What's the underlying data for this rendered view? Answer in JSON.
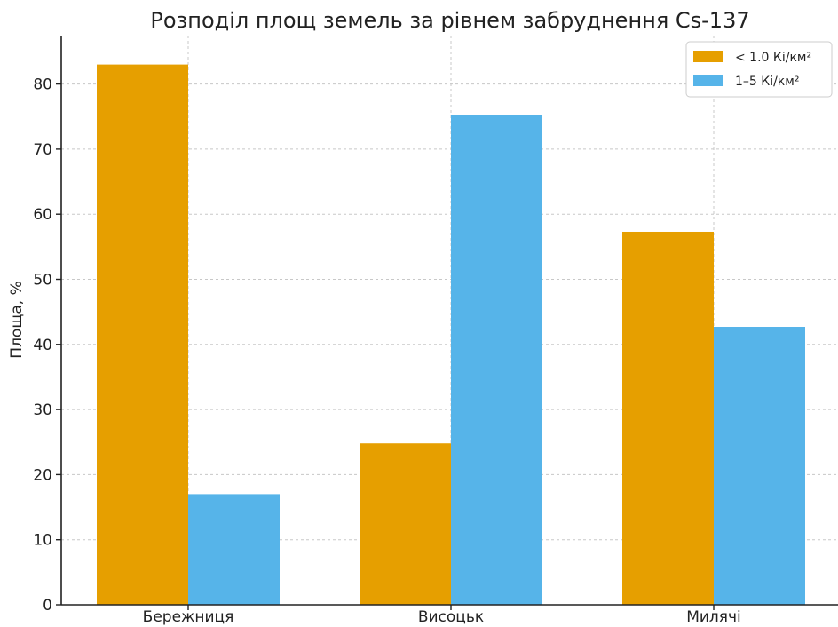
{
  "chart_data": {
    "type": "bar",
    "title": "Розподіл площ земель за рівнем забруднення Cs-137",
    "xlabel": "",
    "ylabel": "Площа, %",
    "categories": [
      "Бережниця",
      "Висоцьк",
      "Милячі"
    ],
    "series": [
      {
        "name": "< 1.0 Кі/км²",
        "values": [
          83,
          24.8,
          57.3
        ],
        "color": "#E69F00"
      },
      {
        "name": "1–5 Кі/км²",
        "values": [
          17,
          75.2,
          42.7
        ],
        "color": "#56B4E9"
      }
    ],
    "ylim": [
      0,
      87
    ],
    "yticks": [
      0,
      10,
      20,
      30,
      40,
      50,
      60,
      70,
      80
    ],
    "grid": true,
    "legend_position": "top-right"
  }
}
